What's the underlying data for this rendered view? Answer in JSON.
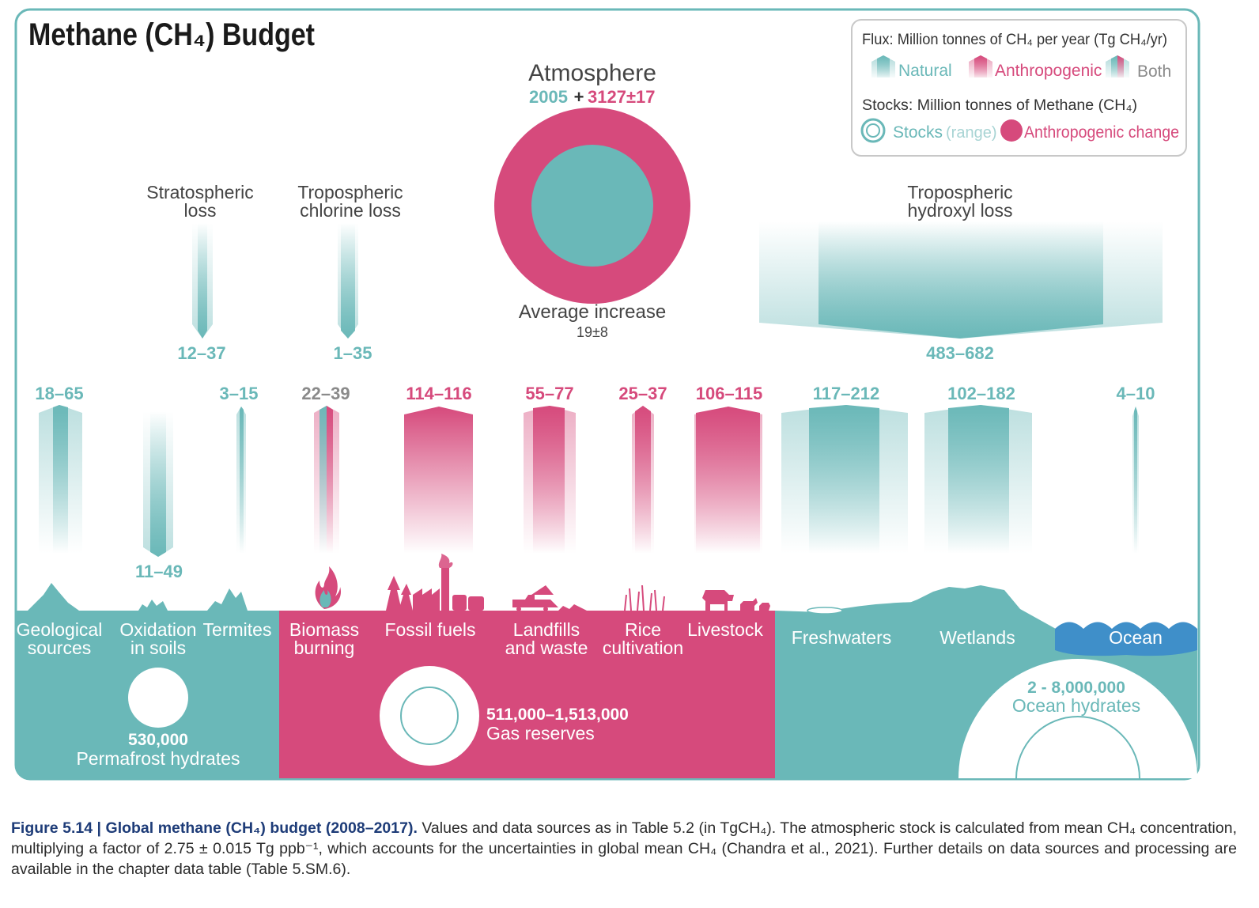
{
  "title": "Methane (CH₄) Budget",
  "colors": {
    "natural": "#6ab8b8",
    "anthropogenic": "#d64a7c",
    "grey": "#8a8a8a",
    "ocean": "#3f8fc9",
    "text_dark": "#333333"
  },
  "legend": {
    "flux_title": "Flux: Million tonnes of CH₄ per year (Tg CH₄/yr)",
    "natural": "Natural",
    "anthropogenic": "Anthropogenic",
    "both": "Both",
    "stocks_title": "Stocks: Million tonnes of Methane (CH₄)",
    "stocks": "Stocks",
    "range": "(range)",
    "anthro_change": "Anthropogenic change"
  },
  "atmosphere": {
    "label": "Atmosphere",
    "natural_stock": "2005",
    "plus": "+",
    "anthro_stock": "3127±17",
    "increase_label": "Average increase",
    "increase_value": "19±8"
  },
  "sinks": [
    {
      "label1": "Stratospheric",
      "label2": "loss",
      "value": "12–37"
    },
    {
      "label1": "Tropospheric",
      "label2": "chlorine loss",
      "value": "1–35"
    },
    {
      "label1": "Tropospheric",
      "label2": "hydroxyl loss",
      "value": "483–682"
    }
  ],
  "soil_sink": {
    "value": "11–49"
  },
  "sources": [
    {
      "name": "Geological sources",
      "line1": "Geological",
      "line2": "sources",
      "value": "18–65",
      "type": "natural"
    },
    {
      "name": "Oxidation in soils",
      "line1": "Oxidation",
      "line2": "in soils",
      "value": "11–49",
      "type": "natural"
    },
    {
      "name": "Termites",
      "line1": "Termites",
      "line2": "",
      "value": "3–15",
      "type": "natural"
    },
    {
      "name": "Biomass burning",
      "line1": "Biomass",
      "line2": "burning",
      "value": "22–39",
      "type": "both"
    },
    {
      "name": "Fossil fuels",
      "line1": "Fossil fuels",
      "line2": "",
      "value": "114–116",
      "type": "anthropogenic"
    },
    {
      "name": "Landfills and waste",
      "line1": "Landfills",
      "line2": "and waste",
      "value": "55–77",
      "type": "anthropogenic"
    },
    {
      "name": "Rice cultivation",
      "line1": "Rice",
      "line2": "cultivation",
      "value": "25–37",
      "type": "anthropogenic"
    },
    {
      "name": "Livestock",
      "line1": "Livestock",
      "line2": "",
      "value": "106–115",
      "type": "anthropogenic"
    },
    {
      "name": "Freshwaters",
      "line1": "Freshwaters",
      "line2": "",
      "value": "117–212",
      "type": "natural"
    },
    {
      "name": "Wetlands",
      "line1": "Wetlands",
      "line2": "",
      "value": "102–182",
      "type": "natural"
    },
    {
      "name": "Ocean",
      "line1": "Ocean",
      "line2": "",
      "value": "4–10",
      "type": "natural"
    }
  ],
  "stocks": {
    "permafrost_value": "530,000",
    "permafrost_label": "Permafrost hydrates",
    "gas_value": "511,000–1,513,000",
    "gas_label": "Gas reserves",
    "ocean_value": "2 - 8,000,000",
    "ocean_label": "Ocean hydrates"
  },
  "caption": {
    "bold": "Figure 5.14 | Global methane (CH₄) budget (2008–2017).",
    "text": " Values and data sources as in Table 5.2 (in TgCH₄). The atmospheric stock is calculated from mean CH₄ concentration, multiplying a factor of 2.75 ± 0.015 Tg ppb⁻¹, which accounts for the uncertainties in global mean CH₄ (Chandra et al., 2021). Further details on data sources and processing are available in the chapter data table (Table 5.SM.6)."
  }
}
